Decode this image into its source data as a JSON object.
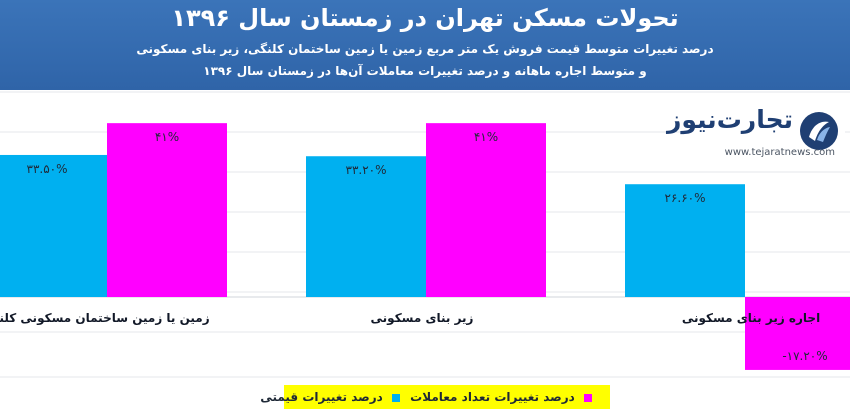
{
  "colors": {
    "header_bg": "#2f64a8",
    "price_change": "#00b0f0",
    "transaction_change": "#ff00ff",
    "legend_bg": "#ffff00",
    "logo_dark": "#1f3f73"
  },
  "header": {
    "title": "تحولات مسکن تهران در زمستان سال ۱۳۹۶",
    "subtitle_line1": "درصد تغییرات متوسط قیمت فروش یک متر مربع زمین یا زمین ساختمان کلنگی، زیر بنای مسکونی",
    "subtitle_line2": "و متوسط اجاره ماهانه و درصد تغییرات معاملات آن‌ها در زمستان سال ۱۳۹۶"
  },
  "logo": {
    "name": "تجارت‌نیوز",
    "url": "www.tejaratnews.com",
    "icon": "tejaratnews-logo-icon"
  },
  "chart_data": {
    "type": "bar",
    "categories": [
      "زمین یا زمین ساختمان مسکونی کلنگی",
      "زیر بنای مسکونی",
      "اجاره زیر بنای مسکونی"
    ],
    "series": [
      {
        "name": "درصد تغییرات قیمتی",
        "values": [
          33.5,
          33.2,
          26.6
        ],
        "labels": [
          "۳۳.۵۰%",
          "۳۳.۲۰%",
          "۲۶.۶۰%"
        ]
      },
      {
        "name": "درصد تغییرات تعداد معاملات",
        "values": [
          41,
          41,
          -17.2
        ],
        "labels": [
          "۴۱%",
          "۴۱%",
          "-۱۷.۲۰%"
        ]
      }
    ],
    "ylim": [
      -20,
      45
    ],
    "grid": true,
    "legend": "bottom"
  },
  "legend": {
    "items": [
      {
        "label": "درصد تغییرات تعداد معاملات",
        "series": 1
      },
      {
        "label": "درصد تغییرات قیمتی",
        "series": 0
      }
    ]
  }
}
